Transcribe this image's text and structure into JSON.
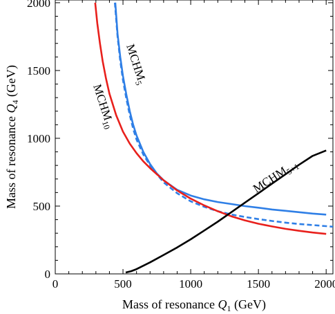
{
  "chart_data": {
    "type": "line",
    "xlabel": "Mass of resonance Q1 (GeV)",
    "ylabel": "Mass of resonance Q4 (GeV)",
    "xlim": [
      0,
      2050
    ],
    "ylim": [
      0,
      2020
    ],
    "xticks": [
      "0",
      "500",
      "1000",
      "1500",
      "2000"
    ],
    "yticks": [
      "0",
      "500",
      "1000",
      "1500",
      "2000"
    ],
    "grid": false,
    "frame": "box",
    "series": [
      {
        "name": "MCHM5",
        "color": "#2f7fe6",
        "dash": "solid",
        "x": [
          443,
          460,
          480,
          500,
          525,
          550,
          575,
          600,
          650,
          700,
          750,
          800,
          900,
          1000,
          1100,
          1200,
          1300,
          1400,
          1500,
          1600,
          1700,
          1800,
          1900,
          2000
        ],
        "y": [
          2000,
          1770,
          1600,
          1460,
          1320,
          1200,
          1100,
          1020,
          900,
          810,
          740,
          690,
          620,
          578,
          550,
          530,
          515,
          500,
          488,
          475,
          465,
          455,
          445,
          437
        ]
      },
      {
        "name": "MCHM5",
        "color": "#2f7fe6",
        "dash": "dashed",
        "x": [
          440,
          460,
          480,
          500,
          525,
          550,
          575,
          600,
          650,
          700,
          750,
          800,
          900,
          1000,
          1100,
          1200,
          1300,
          1400,
          1500,
          1600,
          1700,
          1800,
          1900,
          2000,
          2050
        ],
        "y": [
          2000,
          1750,
          1570,
          1430,
          1290,
          1170,
          1070,
          990,
          880,
          800,
          735,
          675,
          595,
          535,
          495,
          462,
          438,
          420,
          404,
          390,
          378,
          368,
          360,
          352,
          348
        ]
      },
      {
        "name": "MCHM10",
        "color": "#e8201c",
        "dash": "solid",
        "x": [
          295,
          310,
          330,
          350,
          375,
          400,
          450,
          500,
          550,
          600,
          650,
          700,
          750,
          800,
          900,
          1000,
          1100,
          1200,
          1300,
          1400,
          1500,
          1600,
          1700,
          1800,
          1900,
          2000
        ],
        "y": [
          2000,
          1850,
          1700,
          1570,
          1440,
          1330,
          1170,
          1050,
          960,
          890,
          830,
          780,
          735,
          690,
          615,
          555,
          505,
          462,
          425,
          395,
          370,
          350,
          332,
          318,
          305,
          295
        ]
      },
      {
        "name": "MCHM5+1",
        "color": "#000000",
        "dash": "solid",
        "x": [
          520,
          560,
          600,
          650,
          700,
          800,
          900,
          1000,
          1100,
          1200,
          1300,
          1400,
          1500,
          1600,
          1700,
          1800,
          1900,
          2000
        ],
        "y": [
          10,
          20,
          35,
          60,
          85,
          140,
          195,
          255,
          320,
          385,
          455,
          525,
          595,
          665,
          735,
          805,
          870,
          910
        ]
      }
    ]
  },
  "labels": {
    "mchm5": {
      "base": "MCHM",
      "sub": "5"
    },
    "mchm10": {
      "base": "MCHM",
      "sub": "10"
    },
    "mchm51": {
      "base": "MCHM",
      "sub": "5+1"
    }
  },
  "axis_titles": {
    "x_pre": "Mass of resonance ",
    "x_var": "Q",
    "x_sub": "1",
    "x_post": " (GeV)",
    "y_pre": "Mass of resonance ",
    "y_var": "Q",
    "y_sub": "4",
    "y_post": " (GeV)"
  }
}
